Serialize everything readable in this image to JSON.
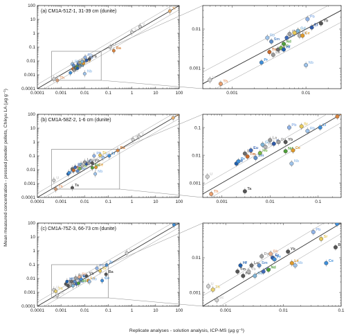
{
  "figure": {
    "ylabel": "Mean measured concentration - pressed powder pellets, Chikyu LA (µg g⁻¹)",
    "xlabel": "Replicate analyses - solution analysis, ICP-MS (µg g⁻¹)"
  },
  "chart_data": [
    {
      "type": "scatter",
      "title": "(a) CM1A-51Z-1, 31-39 cm (dunite)",
      "log": true,
      "xlim": [
        0.0001,
        100
      ],
      "ylim": [
        0.0001,
        100
      ],
      "x_ticks": [
        "0.0001",
        "0.001",
        "0.01",
        "0.1",
        "1",
        "10",
        "100"
      ],
      "y_ticks": [
        "0.0001",
        "0.001",
        "0.01",
        "0.1",
        "1",
        "10",
        "100"
      ],
      "inset_box": {
        "xlim": [
          0.0004,
          0.05
        ],
        "ylim": [
          0.0004,
          0.05
        ]
      },
      "zoom": {
        "xlim": [
          0.0004,
          0.03
        ],
        "ylim": [
          0.0003,
          0.04
        ],
        "x_ticks": [
          "0.001",
          "0.01"
        ],
        "y_ticks": [
          "0.001",
          "0.01"
        ]
      },
      "points": [
        {
          "label": "U",
          "x": 0.0005,
          "y": 0.0005,
          "color": "#cfcfcf"
        },
        {
          "label": "Th",
          "x": 0.0007,
          "y": 0.0004,
          "color": "#e8a070"
        },
        {
          "label": "Pr",
          "x": 0.0025,
          "y": 0.0014,
          "color": "#3f8ed8"
        },
        {
          "label": "Tm",
          "x": 0.0032,
          "y": 0.0026,
          "color": "#c86a2b"
        },
        {
          "label": "La",
          "x": 0.0036,
          "y": 0.0022,
          "color": "#999999"
        },
        {
          "label": "Rb",
          "x": 0.003,
          "y": 0.006,
          "color": "#9ec3ea"
        },
        {
          "label": "Sm",
          "x": 0.0034,
          "y": 0.0048,
          "color": "#5f8ec8"
        },
        {
          "label": "Lu",
          "x": 0.0042,
          "y": 0.003,
          "color": "#6b6b6b"
        },
        {
          "label": "Ho",
          "x": 0.0046,
          "y": 0.0033,
          "color": "#7ab648"
        },
        {
          "label": "Nd",
          "x": 0.005,
          "y": 0.0042,
          "color": "#4f9e3a"
        },
        {
          "label": "Hf",
          "x": 0.005,
          "y": 0.003,
          "color": "#1f5fae"
        },
        {
          "label": "Eu",
          "x": 0.0055,
          "y": 0.006,
          "color": "#3f6ab8"
        },
        {
          "label": "Dy",
          "x": 0.006,
          "y": 0.0075,
          "color": "#a0a0a0"
        },
        {
          "label": "Sr",
          "x": 0.007,
          "y": 0.008,
          "color": "#e6c85a"
        },
        {
          "label": "Tb",
          "x": 0.0082,
          "y": 0.0068,
          "color": "#b5b5b5"
        },
        {
          "label": "Ce",
          "x": 0.009,
          "y": 0.0068,
          "color": "#e09a2a"
        },
        {
          "label": "Gd",
          "x": 0.0078,
          "y": 0.009,
          "color": "#7fb3d5"
        },
        {
          "label": "Pb",
          "x": 0.0105,
          "y": 0.018,
          "color": "#8fb2e6"
        },
        {
          "label": "Er",
          "x": 0.012,
          "y": 0.011,
          "color": "#2f5aa8"
        },
        {
          "label": "Yb",
          "x": 0.016,
          "y": 0.014,
          "color": "#555555"
        },
        {
          "label": "Nb",
          "x": 0.01,
          "y": 0.0012,
          "color": "#9ec3ea"
        },
        {
          "label": "Ba",
          "x": 0.17,
          "y": 0.055,
          "color": "#d8843f"
        },
        {
          "label": "Zr",
          "x": 0.12,
          "y": 0.1,
          "color": "#cfcfcf"
        },
        {
          "label": "Sc",
          "x": 1.0,
          "y": 1.2,
          "color": "#cfcfcf"
        },
        {
          "label": "V",
          "x": 2.2,
          "y": 3.0,
          "color": "#cfcfcf"
        },
        {
          "label": "Ti",
          "x": 40.0,
          "y": 40.0,
          "color": "#e8b070"
        }
      ]
    },
    {
      "type": "scatter",
      "title": "(b) CM1A-58Z-2, 1-6 cm (dunite)",
      "log": true,
      "xlim": [
        0.0001,
        100
      ],
      "ylim": [
        0.0001,
        100
      ],
      "x_ticks": [
        "0.0001",
        "0.001",
        "0.01",
        "0.1",
        "1",
        "10",
        "100"
      ],
      "y_ticks": [
        "0.0001",
        "0.001",
        "0.01",
        "0.1",
        "1",
        "10",
        "100"
      ],
      "inset_box": {
        "xlim": [
          0.0004,
          0.3
        ],
        "ylim": [
          0.0004,
          0.3
        ]
      },
      "zoom": {
        "xlim": [
          0.0004,
          0.3
        ],
        "ylim": [
          0.0003,
          0.3
        ],
        "x_ticks": [
          "0.001",
          "0.01",
          "0.1"
        ],
        "y_ticks": [
          "0.001",
          "0.01",
          "0.1"
        ]
      },
      "points": [
        {
          "label": "U",
          "x": 0.0005,
          "y": 0.0017,
          "color": "#cfcfcf"
        },
        {
          "label": "Th",
          "x": 0.0006,
          "y": 0.0004,
          "color": "#e8a070"
        },
        {
          "label": "Ta",
          "x": 0.003,
          "y": 0.0005,
          "color": "#555555"
        },
        {
          "label": "Hf",
          "x": 0.002,
          "y": 0.005,
          "color": "#1f5fae"
        },
        {
          "label": "Pr",
          "x": 0.0022,
          "y": 0.006,
          "color": "#3f8ed8"
        },
        {
          "label": "Lu",
          "x": 0.003,
          "y": 0.0115,
          "color": "#6b6b6b"
        },
        {
          "label": "Tm",
          "x": 0.0034,
          "y": 0.009,
          "color": "#c86a2b"
        },
        {
          "label": "Sm",
          "x": 0.005,
          "y": 0.008,
          "color": "#5f8ec8"
        },
        {
          "label": "Ho",
          "x": 0.0062,
          "y": 0.012,
          "color": "#7ab648"
        },
        {
          "label": "Eu",
          "x": 0.004,
          "y": 0.015,
          "color": "#3f6ab8"
        },
        {
          "label": "Gd",
          "x": 0.007,
          "y": 0.024,
          "color": "#7fb3d5"
        },
        {
          "label": "Tb",
          "x": 0.008,
          "y": 0.02,
          "color": "#b5b5b5"
        },
        {
          "label": "Er",
          "x": 0.012,
          "y": 0.026,
          "color": "#2f5aa8"
        },
        {
          "label": "Dy",
          "x": 0.015,
          "y": 0.03,
          "color": "#a0a0a0"
        },
        {
          "label": "Yb",
          "x": 0.021,
          "y": 0.03,
          "color": "#555555"
        },
        {
          "label": "Nd",
          "x": 0.021,
          "y": 0.014,
          "color": "#4f9e3a"
        },
        {
          "label": "Ce",
          "x": 0.03,
          "y": 0.015,
          "color": "#e09a2a"
        },
        {
          "label": "La",
          "x": 0.01,
          "y": 0.035,
          "color": "#999999"
        },
        {
          "label": "Nb",
          "x": 0.028,
          "y": 0.005,
          "color": "#9ec3ea"
        },
        {
          "label": "Pb",
          "x": 0.025,
          "y": 0.1,
          "color": "#8fb2e6"
        },
        {
          "label": "Sr",
          "x": 0.045,
          "y": 0.11,
          "color": "#e6c85a"
        },
        {
          "label": "Rb",
          "x": 0.06,
          "y": 0.075,
          "color": "#9ec3ea"
        },
        {
          "label": "Li",
          "x": 0.11,
          "y": 0.1,
          "color": "#3f8ed8"
        },
        {
          "label": "Ba",
          "x": 0.25,
          "y": 0.25,
          "color": "#d8843f"
        },
        {
          "label": "Sc",
          "x": 1.1,
          "y": 1.5,
          "color": "#cfcfcf"
        },
        {
          "label": "V",
          "x": 2.0,
          "y": 2.5,
          "color": "#cfcfcf"
        },
        {
          "label": "Ti",
          "x": 55.0,
          "y": 55.0,
          "color": "#e8b070"
        }
      ]
    },
    {
      "type": "scatter",
      "title": "(c) CM1A-75Z-3, 66-73 cm (dunite)",
      "log": true,
      "xlim": [
        0.0001,
        100
      ],
      "ylim": [
        0.0001,
        100
      ],
      "x_ticks": [
        "0.0001",
        "0.001",
        "0.01",
        "0.1",
        "1",
        "10",
        "100"
      ],
      "y_ticks": [
        "0.0001",
        "0.001",
        "0.01",
        "0.1",
        "1",
        "10",
        "100"
      ],
      "inset_box": {
        "xlim": [
          0.0004,
          0.1
        ],
        "ylim": [
          0.0004,
          0.1
        ]
      },
      "zoom": {
        "xlim": [
          0.0004,
          0.1
        ],
        "ylim": [
          0.0004,
          0.1
        ],
        "x_ticks": [
          "0.001",
          "0.01",
          "0.1"
        ],
        "y_ticks": [
          "0.001",
          "0.01"
        ]
      },
      "points": [
        {
          "label": "U",
          "x": 0.0005,
          "y": 0.0015,
          "color": "#cfcfcf"
        },
        {
          "label": "Th",
          "x": 0.0006,
          "y": 0.0012,
          "color": "#e8d070"
        },
        {
          "label": "Sc",
          "x": 0.0007,
          "y": 0.0006,
          "color": "#cfcfcf"
        },
        {
          "label": "Tm",
          "x": 0.0016,
          "y": 0.004,
          "color": "#555555"
        },
        {
          "label": "Hf",
          "x": 0.0018,
          "y": 0.006,
          "color": "#1f5fae"
        },
        {
          "label": "Ho",
          "x": 0.002,
          "y": 0.003,
          "color": "#555555"
        },
        {
          "label": "Tb",
          "x": 0.0025,
          "y": 0.004,
          "color": "#b5b5b5"
        },
        {
          "label": "Lu",
          "x": 0.0028,
          "y": 0.006,
          "color": "#6b6b6b"
        },
        {
          "label": "Gd",
          "x": 0.0032,
          "y": 0.003,
          "color": "#7fb3d5"
        },
        {
          "label": "Sm",
          "x": 0.0038,
          "y": 0.006,
          "color": "#5f8ec8"
        },
        {
          "label": "Eu",
          "x": 0.0045,
          "y": 0.004,
          "color": "#3f6ab8"
        },
        {
          "label": "Nd",
          "x": 0.0055,
          "y": 0.0045,
          "color": "#4f9e3a"
        },
        {
          "label": "Dy",
          "x": 0.0042,
          "y": 0.011,
          "color": "#a0a0a0"
        },
        {
          "label": "Er",
          "x": 0.0065,
          "y": 0.01,
          "color": "#2f5aa8"
        },
        {
          "label": "Pr",
          "x": 0.007,
          "y": 0.009,
          "color": "#3f8ed8"
        },
        {
          "label": "Rb",
          "x": 0.006,
          "y": 0.013,
          "color": "#e8b090"
        },
        {
          "label": "Yb",
          "x": 0.012,
          "y": 0.015,
          "color": "#555555"
        },
        {
          "label": "La",
          "x": 0.014,
          "y": 0.007,
          "color": "#e09a2a"
        },
        {
          "label": "Nb",
          "x": 0.016,
          "y": 0.006,
          "color": "#9ec3ea"
        },
        {
          "label": "Ce",
          "x": 0.055,
          "y": 0.007,
          "color": "#3f8ed8"
        },
        {
          "label": "Sr",
          "x": 0.045,
          "y": 0.035,
          "color": "#e6c85a"
        },
        {
          "label": "Pb",
          "x": 0.033,
          "y": 0.055,
          "color": "#8fb2e6"
        },
        {
          "label": "Ba",
          "x": 0.08,
          "y": 0.02,
          "color": "#555555"
        },
        {
          "label": "Zr",
          "x": 0.085,
          "y": 0.095,
          "color": "#3f8ed8"
        },
        {
          "label": "V",
          "x": 0.6,
          "y": 0.7,
          "color": "#cfcfcf"
        },
        {
          "label": "Ti",
          "x": 60.0,
          "y": 75.0,
          "color": "#3f8ed8"
        }
      ]
    }
  ]
}
